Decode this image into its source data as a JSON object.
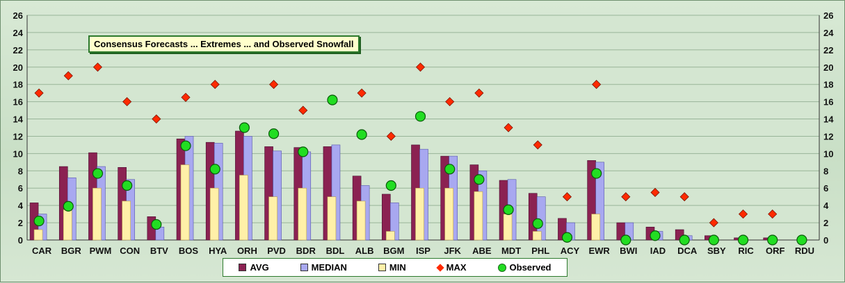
{
  "chart_data": {
    "type": "bar",
    "title": "Consensus Forecasts ... Extremes ... and Observed Snowfall",
    "xlabel": "",
    "ylabel": "",
    "ylim": [
      0,
      26
    ],
    "yticks": [
      0,
      2,
      4,
      6,
      8,
      10,
      12,
      14,
      16,
      18,
      20,
      22,
      24,
      26
    ],
    "grid": true,
    "legend_position": "bottom",
    "categories": [
      "CAR",
      "BGR",
      "PWM",
      "CON",
      "BTV",
      "BOS",
      "HYA",
      "ORH",
      "PVD",
      "BDR",
      "BDL",
      "ALB",
      "BGM",
      "ISP",
      "JFK",
      "ABE",
      "MDT",
      "PHL",
      "ACY",
      "EWR",
      "BWI",
      "IAD",
      "DCA",
      "SBY",
      "RIC",
      "ORF",
      "RDU"
    ],
    "series": [
      {
        "name": "AVG",
        "kind": "bar",
        "color": "#8b2252",
        "values": [
          4.3,
          8.5,
          10.1,
          8.4,
          2.7,
          11.7,
          11.3,
          12.6,
          10.8,
          10.7,
          10.8,
          7.4,
          5.3,
          11.0,
          9.7,
          8.7,
          6.9,
          5.4,
          2.5,
          9.2,
          2.0,
          1.5,
          1.2,
          0.5,
          0.25,
          0.25,
          0
        ]
      },
      {
        "name": "MEDIAN",
        "kind": "bar",
        "color": "#a8a8f0",
        "values": [
          3.0,
          7.2,
          8.5,
          7.0,
          1.5,
          12.0,
          11.2,
          12.0,
          10.3,
          10.2,
          11.0,
          6.3,
          4.3,
          10.5,
          9.7,
          8.0,
          7.0,
          5.0,
          2.0,
          9.0,
          2.0,
          1.0,
          0.5,
          0,
          0,
          0,
          0
        ]
      },
      {
        "name": "MIN",
        "kind": "bar",
        "color": "#fff0a8",
        "values": [
          1.2,
          3.5,
          6.0,
          4.5,
          0,
          8.7,
          6.0,
          7.5,
          5.0,
          6.0,
          5.0,
          4.5,
          1.0,
          6.0,
          6.0,
          5.6,
          3.0,
          1.0,
          0,
          3.0,
          0,
          0,
          0,
          0,
          0,
          0,
          0
        ]
      },
      {
        "name": "MAX",
        "kind": "diamond",
        "color": "#ff2a00",
        "values": [
          17,
          19,
          20,
          16,
          14,
          16.5,
          18,
          13,
          18,
          15,
          16.3,
          17,
          12,
          20,
          16,
          17,
          13,
          11,
          5,
          18,
          5,
          5.5,
          5,
          2,
          3,
          3,
          null
        ]
      },
      {
        "name": "Observed",
        "kind": "circle",
        "color": "#22dd22",
        "values": [
          2.2,
          3.9,
          7.7,
          6.3,
          1.8,
          10.9,
          8.2,
          13.0,
          12.3,
          10.2,
          16.2,
          12.2,
          6.3,
          14.3,
          8.2,
          7.0,
          3.5,
          1.9,
          0.3,
          7.7,
          0,
          0.5,
          0,
          0,
          0,
          0,
          0
        ]
      }
    ]
  },
  "legend": [
    {
      "label": "AVG",
      "color": "#8b2252",
      "shape": "square"
    },
    {
      "label": "MEDIAN",
      "color": "#a8a8f0",
      "shape": "square"
    },
    {
      "label": "MIN",
      "color": "#fff0a8",
      "shape": "square"
    },
    {
      "label": "MAX",
      "color": "#ff2a00",
      "shape": "diamond"
    },
    {
      "label": "Observed",
      "color": "#22dd22",
      "shape": "circle"
    }
  ]
}
